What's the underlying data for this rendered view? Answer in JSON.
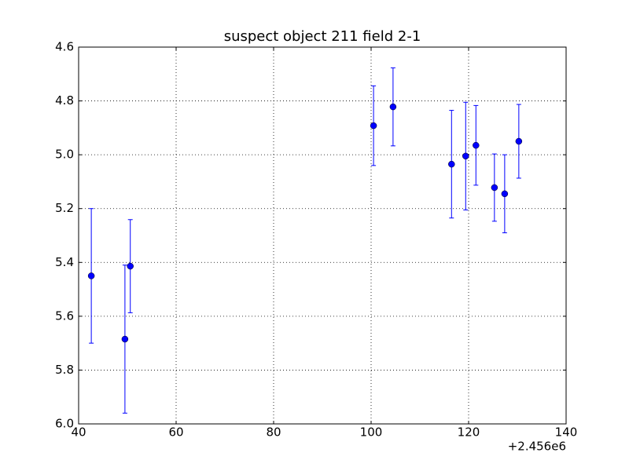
{
  "chart_data": {
    "type": "errorbar",
    "title": "suspect object 211 field 2-1",
    "x": [
      42.6,
      49.5,
      50.6,
      100.5,
      104.5,
      116.5,
      119.4,
      121.5,
      125.3,
      127.4,
      130.3
    ],
    "values": [
      5.45,
      5.685,
      5.414,
      4.892,
      4.822,
      5.035,
      5.005,
      4.965,
      5.122,
      5.145,
      4.95
    ],
    "errors": [
      0.25,
      0.275,
      0.173,
      0.148,
      0.145,
      0.2,
      0.2,
      0.148,
      0.125,
      0.145,
      0.137
    ],
    "color": "#0000ff",
    "xlim": [
      40,
      140
    ],
    "xticks": [
      40,
      60,
      80,
      100,
      120,
      140
    ],
    "x_offset_label": "+2.456e6",
    "ylim": [
      4.6,
      6.0
    ],
    "y_inverted": true,
    "yticks": [
      4.6,
      4.8,
      {
        "value": 5.0,
        "label": "5.0"
      },
      5.2,
      5.4,
      5.6,
      5.8,
      {
        "value": 6.0,
        "label": "6.0"
      }
    ],
    "grid": true
  }
}
